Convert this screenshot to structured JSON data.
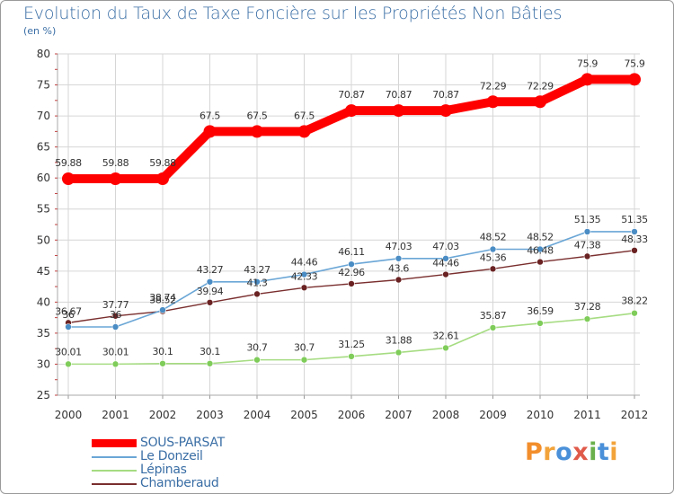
{
  "title": "Evolution du Taux de Taxe Foncière sur les Propriétés Non Bâties",
  "unit": "(en %)",
  "logo": {
    "text": "Proxiti",
    "letters": [
      {
        "ch": "P",
        "color": "#f28e2b"
      },
      {
        "ch": "r",
        "color": "#f2a33a"
      },
      {
        "ch": "o",
        "color": "#4a90d9"
      },
      {
        "ch": "x",
        "color": "#e05a4a"
      },
      {
        "ch": "i",
        "color": "#6ab04c"
      },
      {
        "ch": "t",
        "color": "#4a90d9"
      },
      {
        "ch": "i",
        "color": "#f2a33a"
      }
    ]
  },
  "chart_data": {
    "type": "line",
    "title": "Evolution du Taux de Taxe Foncière sur les Propriétés Non Bâties",
    "ylabel": "(en %)",
    "ylim": [
      25,
      80
    ],
    "yticks": [
      25,
      30,
      35,
      40,
      45,
      50,
      55,
      60,
      65,
      70,
      75,
      80
    ],
    "grid": true,
    "legend_position": "bottom-left",
    "categories": [
      "2000",
      "2001",
      "2002",
      "2003",
      "2004",
      "2005",
      "2006",
      "2007",
      "2008",
      "2009",
      "2010",
      "2011",
      "2012"
    ],
    "series": [
      {
        "name": "SOUS-PARSAT",
        "color": "#ff0000",
        "values": [
          59.88,
          59.88,
          59.88,
          67.5,
          67.5,
          67.5,
          70.87,
          70.87,
          70.87,
          72.29,
          72.29,
          75.9,
          75.9
        ],
        "labels": [
          "59.88",
          "59.88",
          "59.88",
          "67.5",
          "67.5",
          "67.5",
          "70.87",
          "70.87",
          "70.87",
          "72.29",
          "72.29",
          "75.9",
          "75.9"
        ]
      },
      {
        "name": "Le Donzeil",
        "color": "#6aa6d6",
        "values": [
          36,
          36,
          38.74,
          43.27,
          43.27,
          44.46,
          46.11,
          47.03,
          47.03,
          48.52,
          48.52,
          51.35,
          51.35
        ],
        "labels": [
          "36",
          "36",
          "38.74",
          "43.27",
          "43.27",
          "44.46",
          "46.11",
          "47.03",
          "47.03",
          "48.52",
          "48.52",
          "51.35",
          "51.35"
        ]
      },
      {
        "name": "Lépinas",
        "color": "#a6dc82",
        "values": [
          30.01,
          30.01,
          30.1,
          30.1,
          30.7,
          30.7,
          31.25,
          31.88,
          32.61,
          35.87,
          36.59,
          37.28,
          38.22
        ],
        "labels": [
          "30.01",
          "30.01",
          "30.1",
          "30.1",
          "30.7",
          "30.7",
          "31.25",
          "31.88",
          "32.61",
          "35.87",
          "36.59",
          "37.28",
          "38.22"
        ]
      },
      {
        "name": "Chamberaud",
        "color": "#7a2e2e",
        "values": [
          36.67,
          37.77,
          38.52,
          39.94,
          41.3,
          42.33,
          42.96,
          43.6,
          44.46,
          45.36,
          46.48,
          47.38,
          48.33
        ],
        "labels": [
          "36.67",
          "37.77",
          "38.52",
          "39.94",
          "41.3",
          "42.33",
          "42.96",
          "43.6",
          "44.46",
          "45.36",
          "46.48",
          "47.38",
          "48.33"
        ]
      }
    ]
  }
}
